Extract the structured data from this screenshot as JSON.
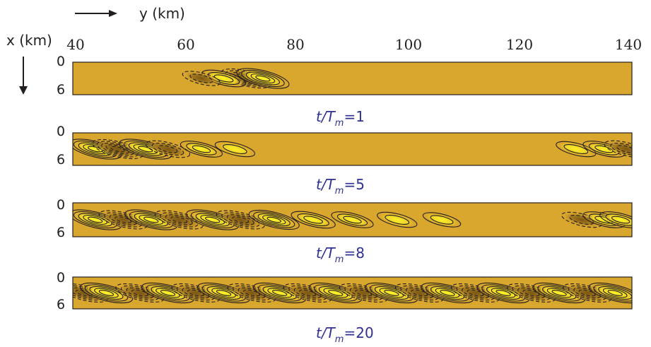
{
  "chart_data": {
    "type": "heatmap",
    "x_axis_label": "y (km)",
    "y_axis_label": "x (km)",
    "x_ticks": [
      "40",
      "60",
      "80",
      "100",
      "120",
      "140"
    ],
    "x_range": [
      40,
      140
    ],
    "y_ticks": [
      "0",
      "6"
    ],
    "y_range": [
      0,
      6
    ],
    "colors": {
      "background": "#d9a62e",
      "positive_core": "#f5e51f",
      "negative_core": "#8a6418",
      "contour": "#231f20",
      "caption": "#2e3192"
    },
    "panels": [
      {
        "caption_prefix": "t/T",
        "caption_sub": "m",
        "caption_value": "=1",
        "wave_packets": [
          {
            "center_km": 71,
            "amplitude": 0.9,
            "sign": -1
          },
          {
            "center_km": 74,
            "amplitude": 1.0,
            "sign": 1
          },
          {
            "center_km": 67,
            "amplitude": 0.6,
            "sign": 1
          },
          {
            "center_km": 63,
            "amplitude": 0.3,
            "sign": -1
          }
        ]
      },
      {
        "caption_prefix": "t/T",
        "caption_sub": "m",
        "caption_value": "=5",
        "wave_packets": [
          {
            "center_km": 44,
            "amplitude": 1.0,
            "sign": 1
          },
          {
            "center_km": 48,
            "amplitude": 0.9,
            "sign": -1
          },
          {
            "center_km": 53,
            "amplitude": 1.0,
            "sign": 1
          },
          {
            "center_km": 57,
            "amplitude": 0.6,
            "sign": -1
          },
          {
            "center_km": 63,
            "amplitude": 0.5,
            "sign": 1
          },
          {
            "center_km": 69,
            "amplitude": 0.4,
            "sign": 1
          },
          {
            "center_km": 130,
            "amplitude": 0.4,
            "sign": 1
          },
          {
            "center_km": 135,
            "amplitude": 0.5,
            "sign": 1
          },
          {
            "center_km": 139,
            "amplitude": 0.6,
            "sign": -1
          }
        ]
      },
      {
        "caption_prefix": "t/T",
        "caption_sub": "m",
        "caption_value": "=8",
        "wave_packets": [
          {
            "center_km": 44,
            "amplitude": 1.0,
            "sign": 1
          },
          {
            "center_km": 49,
            "amplitude": 0.8,
            "sign": -1
          },
          {
            "center_km": 54,
            "amplitude": 1.0,
            "sign": 1
          },
          {
            "center_km": 59,
            "amplitude": 0.8,
            "sign": -1
          },
          {
            "center_km": 65,
            "amplitude": 1.0,
            "sign": 1
          },
          {
            "center_km": 70,
            "amplitude": 0.8,
            "sign": -1
          },
          {
            "center_km": 76,
            "amplitude": 0.9,
            "sign": 1
          },
          {
            "center_km": 83,
            "amplitude": 0.6,
            "sign": 1
          },
          {
            "center_km": 90,
            "amplitude": 0.5,
            "sign": 1
          },
          {
            "center_km": 98,
            "amplitude": 0.4,
            "sign": 1
          },
          {
            "center_km": 106,
            "amplitude": 0.3,
            "sign": 1
          },
          {
            "center_km": 131,
            "amplitude": 0.4,
            "sign": -1
          },
          {
            "center_km": 135,
            "amplitude": 0.5,
            "sign": 1
          },
          {
            "center_km": 138,
            "amplitude": 0.5,
            "sign": 1
          }
        ]
      },
      {
        "caption_prefix": "t/T",
        "caption_sub": "m",
        "caption_value": "=20",
        "wave_packets": [
          {
            "center_km": 42,
            "amplitude": 0.8,
            "sign": -1
          },
          {
            "center_km": 46,
            "amplitude": 1.0,
            "sign": 1
          },
          {
            "center_km": 52,
            "amplitude": 0.8,
            "sign": -1
          },
          {
            "center_km": 57,
            "amplitude": 1.0,
            "sign": 1
          },
          {
            "center_km": 62,
            "amplitude": 0.8,
            "sign": -1
          },
          {
            "center_km": 67,
            "amplitude": 1.0,
            "sign": 1
          },
          {
            "center_km": 72,
            "amplitude": 0.8,
            "sign": -1
          },
          {
            "center_km": 77,
            "amplitude": 1.0,
            "sign": 1
          },
          {
            "center_km": 82,
            "amplitude": 0.8,
            "sign": -1
          },
          {
            "center_km": 87,
            "amplitude": 1.0,
            "sign": 1
          },
          {
            "center_km": 92,
            "amplitude": 0.8,
            "sign": -1
          },
          {
            "center_km": 97,
            "amplitude": 1.0,
            "sign": 1
          },
          {
            "center_km": 102,
            "amplitude": 0.8,
            "sign": -1
          },
          {
            "center_km": 107,
            "amplitude": 1.0,
            "sign": 1
          },
          {
            "center_km": 112,
            "amplitude": 0.8,
            "sign": -1
          },
          {
            "center_km": 117,
            "amplitude": 1.0,
            "sign": 1
          },
          {
            "center_km": 122,
            "amplitude": 0.8,
            "sign": -1
          },
          {
            "center_km": 127,
            "amplitude": 1.0,
            "sign": 1
          },
          {
            "center_km": 132,
            "amplitude": 0.8,
            "sign": -1
          },
          {
            "center_km": 137,
            "amplitude": 1.0,
            "sign": 1
          }
        ]
      }
    ]
  }
}
